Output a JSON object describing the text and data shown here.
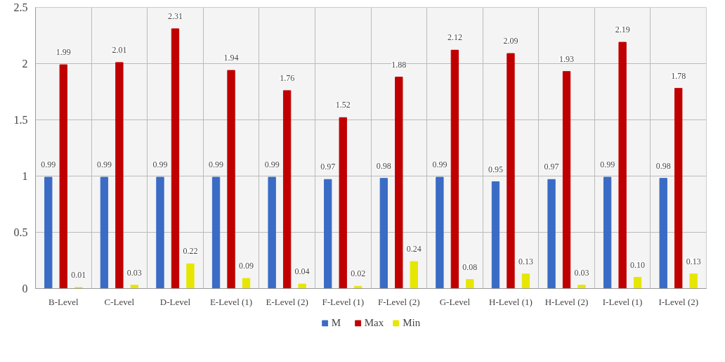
{
  "chart_data": {
    "type": "bar",
    "categories": [
      "B-Level",
      "C-Level",
      "D-Level",
      "E-Level (1)",
      "E-Level (2)",
      "F-Level (1)",
      "F-Level (2)",
      "G-Level",
      "H-Level (1)",
      "H-Level (2)",
      "I-Level (1)",
      "I-Level (2)"
    ],
    "series": [
      {
        "name": "M",
        "color": "#3a6cc6",
        "values": [
          0.99,
          0.99,
          0.99,
          0.99,
          0.99,
          0.97,
          0.98,
          0.99,
          0.95,
          0.97,
          0.99,
          0.98
        ],
        "value_labels": [
          "0.99",
          "0.99",
          "0.99",
          "0.99",
          "0.99",
          "0.97",
          "0.98",
          "0.99",
          "0.95",
          "0.97",
          "0.99",
          "0.98"
        ]
      },
      {
        "name": "Max",
        "color": "#c00000",
        "values": [
          1.99,
          2.01,
          2.31,
          1.94,
          1.76,
          1.52,
          1.88,
          2.12,
          2.09,
          1.93,
          2.19,
          1.78
        ],
        "value_labels": [
          "1.99",
          "2.01",
          "2.31",
          "1.94",
          "1.76",
          "1.52",
          "1.88",
          "2.12",
          "2.09",
          "1.93",
          "2.19",
          "1.78"
        ]
      },
      {
        "name": "Min",
        "color": "#e6e600",
        "values": [
          0.01,
          0.03,
          0.22,
          0.09,
          0.04,
          0.02,
          0.24,
          0.08,
          0.13,
          0.03,
          0.1,
          0.13
        ],
        "value_labels": [
          "0.01",
          "0.03",
          "0.22",
          "0.09",
          "0.04",
          "0.02",
          "0.24",
          "0.08",
          "0.13",
          "0.03",
          "0.10",
          "0.13"
        ]
      }
    ],
    "ylim": [
      0,
      2.5
    ],
    "yticks": [
      0,
      0.5,
      1,
      1.5,
      2,
      2.5
    ],
    "grid": true,
    "legend": "bottom"
  }
}
